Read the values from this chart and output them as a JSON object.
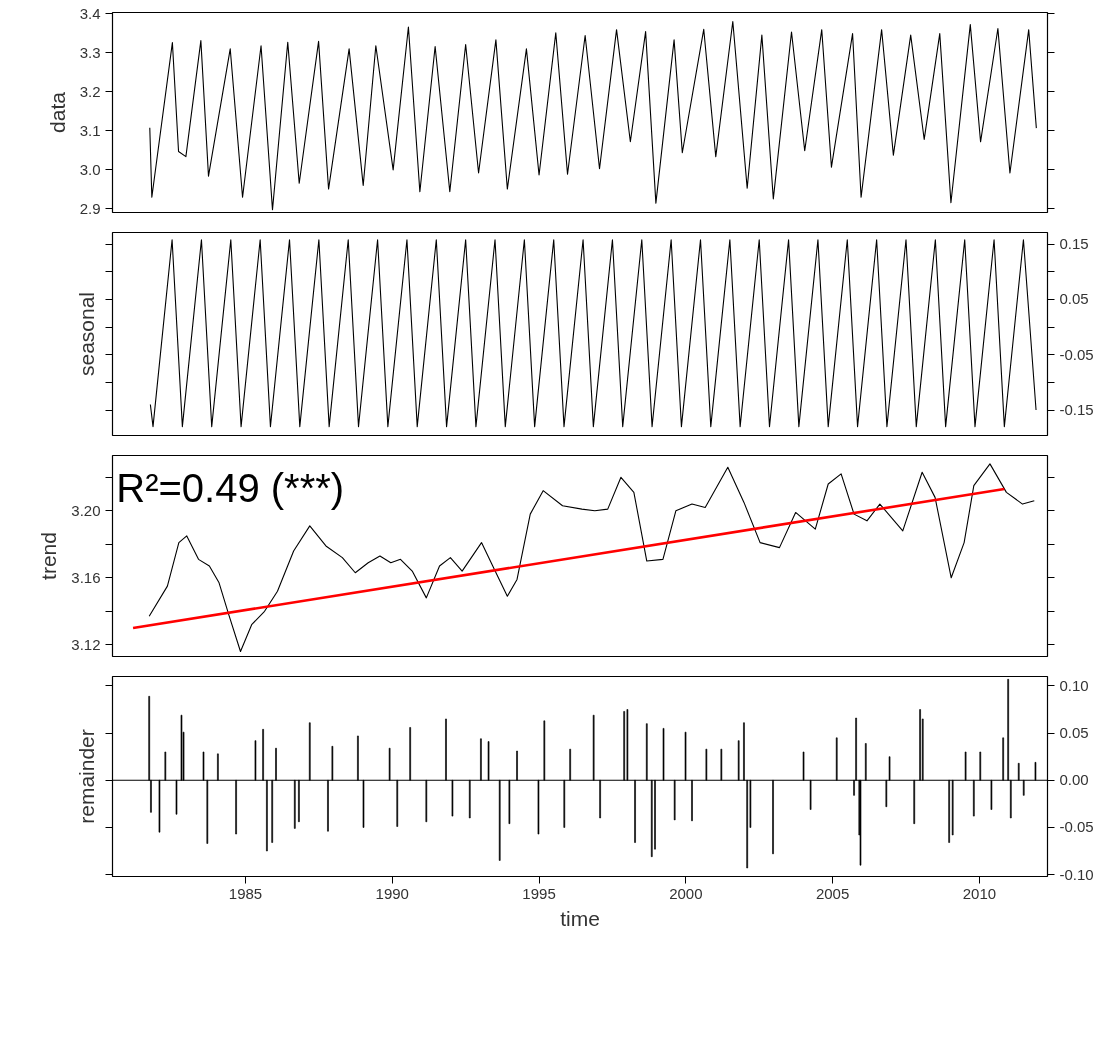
{
  "chart_data": [
    {
      "type": "line",
      "ylabel": "data",
      "xlim": [
        1980.47,
        2012.32
      ],
      "ylim": [
        2.891,
        3.403
      ],
      "yticks": [
        3.4,
        3.3,
        3.2,
        3.1,
        {
          "value": 3.0,
          "label": "3.0"
        },
        2.9
      ],
      "tick_labels": "y",
      "series": [
        {
          "color": "#000000",
          "x": [
            1981.74,
            1981.81,
            1982.51,
            1982.72,
            1982.97,
            1983.48,
            1983.74,
            1984.48,
            1984.9,
            1985.53,
            1985.92,
            1986.44,
            1986.83,
            1987.49,
            1987.83,
            1988.53,
            1989.01,
            1989.44,
            1990.03,
            1990.55,
            1990.94,
            1991.46,
            1991.96,
            1992.5,
            1992.94,
            1993.53,
            1993.92,
            1994.57,
            1995.0,
            1995.57,
            1995.97,
            1996.57,
            1997.06,
            1997.64,
            1998.11,
            1998.63,
            1998.98,
            1999.6,
            1999.88,
            2000.61,
            2001.02,
            2001.6,
            2002.09,
            2002.59,
            2002.98,
            2003.6,
            2004.05,
            2004.63,
            2004.96,
            2005.68,
            2005.97,
            2006.67,
            2007.07,
            2007.66,
            2008.12,
            2008.65,
            2009.03,
            2009.69,
            2010.04,
            2010.63,
            2011.04,
            2011.68,
            2011.94
          ],
          "values": [
            3.108,
            2.93,
            3.326,
            3.047,
            3.034,
            3.331,
            2.984,
            3.31,
            2.93,
            3.318,
            2.898,
            3.327,
            2.966,
            3.329,
            2.951,
            3.31,
            2.96,
            3.318,
            3.0,
            3.366,
            2.944,
            3.316,
            2.944,
            3.321,
            2.992,
            3.333,
            2.951,
            3.31,
            2.987,
            3.351,
            2.989,
            3.344,
            3.003,
            3.359,
            3.072,
            3.354,
            2.915,
            3.333,
            3.044,
            3.36,
            3.034,
            3.38,
            2.953,
            3.345,
            2.926,
            3.353,
            3.049,
            3.359,
            3.007,
            3.349,
            2.93,
            3.359,
            3.038,
            3.345,
            3.078,
            3.349,
            2.916,
            3.372,
            3.072,
            3.362,
            2.992,
            3.359,
            3.107
          ]
        }
      ]
    },
    {
      "type": "line",
      "ylabel": "seasonal",
      "xlim": [
        1980.47,
        2012.32
      ],
      "ylim": [
        -0.196,
        0.171
      ],
      "yticks": [
        {
          "value": -0.15,
          "label": "-0.15"
        },
        {
          "value": -0.1,
          "label": null
        },
        {
          "value": -0.05,
          "label": "-0.05"
        },
        {
          "value": 0,
          "label": null
        },
        {
          "value": 0.05,
          "label": "0.05"
        },
        {
          "value": 0.1,
          "label": null
        },
        {
          "value": 0.15,
          "label": "0.15"
        }
      ],
      "tick_labels": "y",
      "series": [
        {
          "color": "#000000",
          "x": [
            1981.76,
            1981.85,
            1982.5,
            1982.85,
            1983.5,
            1983.85,
            1984.5,
            1984.85,
            1985.5,
            1985.85,
            1986.5,
            1986.85,
            1987.5,
            1987.85,
            1988.5,
            1988.85,
            1989.5,
            1989.85,
            1990.5,
            1990.85,
            1991.5,
            1991.85,
            1992.5,
            1992.85,
            1993.5,
            1993.85,
            1994.5,
            1994.85,
            1995.5,
            1995.85,
            1996.5,
            1996.85,
            1997.5,
            1997.85,
            1998.5,
            1998.85,
            1999.5,
            1999.85,
            2000.5,
            2000.85,
            2001.5,
            2001.85,
            2002.5,
            2002.85,
            2003.5,
            2003.85,
            2004.5,
            2004.85,
            2005.5,
            2005.85,
            2006.5,
            2006.85,
            2007.5,
            2007.85,
            2008.5,
            2008.85,
            2009.5,
            2009.85,
            2010.5,
            2010.85,
            2011.5,
            2011.93
          ],
          "values": [
            -0.14,
            -0.18,
            0.158,
            -0.18,
            0.158,
            -0.18,
            0.158,
            -0.18,
            0.158,
            -0.18,
            0.158,
            -0.18,
            0.158,
            -0.18,
            0.158,
            -0.18,
            0.158,
            -0.18,
            0.158,
            -0.18,
            0.158,
            -0.18,
            0.158,
            -0.18,
            0.158,
            -0.18,
            0.158,
            -0.18,
            0.158,
            -0.18,
            0.158,
            -0.18,
            0.158,
            -0.18,
            0.158,
            -0.18,
            0.158,
            -0.18,
            0.158,
            -0.18,
            0.158,
            -0.18,
            0.158,
            -0.18,
            0.158,
            -0.18,
            0.158,
            -0.18,
            0.158,
            -0.18,
            0.158,
            -0.18,
            0.158,
            -0.18,
            0.158,
            -0.18,
            0.158,
            -0.18,
            0.158,
            -0.18,
            0.158,
            -0.15
          ]
        }
      ]
    },
    {
      "type": "line",
      "ylabel": "trend",
      "xlim": [
        1980.47,
        2012.32
      ],
      "ylim": [
        3.113,
        3.233
      ],
      "yticks": [
        {
          "value": 3.12,
          "label": "3.12"
        },
        {
          "value": 3.14,
          "label": null
        },
        {
          "value": 3.16,
          "label": "3.16"
        },
        {
          "value": 3.18,
          "label": null
        },
        {
          "value": 3.2,
          "label": "3.20"
        },
        {
          "value": 3.22,
          "label": null
        }
      ],
      "tick_labels": "y",
      "annotations": [
        "R²=0.49 (***)"
      ],
      "series": [
        {
          "color": "#000000",
          "x": [
            1981.72,
            1982.34,
            1982.73,
            1983.0,
            1983.4,
            1983.77,
            1984.1,
            1984.43,
            1984.83,
            1985.21,
            1985.65,
            1986.09,
            1986.64,
            1987.19,
            1987.74,
            1988.3,
            1988.74,
            1989.18,
            1989.58,
            1989.95,
            1990.28,
            1990.68,
            1991.16,
            1991.61,
            1991.98,
            1992.38,
            1993.04,
            1993.48,
            1993.92,
            1994.25,
            1994.7,
            1995.14,
            1995.8,
            1996.46,
            1996.9,
            1997.34,
            1997.79,
            1998.23,
            1998.67,
            1999.22,
            1999.66,
            2000.21,
            2000.66,
            2001.43,
            2001.98,
            2002.53,
            2003.19,
            2003.74,
            2004.41,
            2004.85,
            2005.29,
            2005.73,
            2006.17,
            2006.61,
            2007.39,
            2008.05,
            2008.49,
            2009.04,
            2009.48,
            2009.81,
            2010.36,
            2010.92,
            2011.47,
            2011.87
          ],
          "values": [
            3.137,
            3.155,
            3.181,
            3.185,
            3.171,
            3.167,
            3.157,
            3.138,
            3.116,
            3.132,
            3.14,
            3.152,
            3.176,
            3.191,
            3.179,
            3.172,
            3.163,
            3.169,
            3.173,
            3.169,
            3.171,
            3.164,
            3.148,
            3.167,
            3.172,
            3.164,
            3.181,
            3.165,
            3.149,
            3.159,
            3.198,
            3.212,
            3.203,
            3.201,
            3.2,
            3.201,
            3.22,
            3.211,
            3.17,
            3.171,
            3.2,
            3.204,
            3.202,
            3.226,
            3.205,
            3.181,
            3.178,
            3.199,
            3.189,
            3.216,
            3.222,
            3.198,
            3.194,
            3.204,
            3.188,
            3.223,
            3.208,
            3.16,
            3.181,
            3.215,
            3.228,
            3.211,
            3.204,
            3.206
          ]
        },
        {
          "type": "line",
          "color": "#ff0000",
          "x": [
            1981.17,
            2010.85
          ],
          "values": [
            3.13,
            3.213
          ]
        }
      ]
    },
    {
      "type": "bar",
      "ylabel": "remainder",
      "xlabel": "time",
      "xlim": [
        1980.47,
        2012.32
      ],
      "xticks": [
        1985,
        1990,
        1995,
        2000,
        2005,
        2010
      ],
      "ylim": [
        -0.102,
        0.11
      ],
      "yticks": [
        {
          "value": -0.1,
          "label": "-0.10"
        },
        {
          "value": -0.05,
          "label": "-0.05"
        },
        {
          "value": 0,
          "label": "0.00"
        },
        {
          "value": 0.05,
          "label": "0.05"
        },
        {
          "value": 0.1,
          "label": "0.10"
        }
      ],
      "ref_lines": [
        {
          "axis": "y",
          "value": 0,
          "color": "#000000"
        }
      ],
      "series": [
        {
          "color": "#000000",
          "x": [
            1981.72,
            1981.78,
            1982.07,
            1982.27,
            1982.65,
            1982.82,
            1982.89,
            1983.57,
            1983.7,
            1984.06,
            1984.68,
            1985.34,
            1985.6,
            1985.73,
            1985.91,
            1986.04,
            1986.68,
            1986.82,
            1987.19,
            1987.81,
            1987.96,
            1988.83,
            1989.02,
            1989.91,
            1990.17,
            1990.61,
            1991.16,
            1991.83,
            1992.05,
            1992.64,
            1993.02,
            1993.28,
            1993.66,
            1993.99,
            1994.25,
            1994.98,
            1995.18,
            1995.86,
            1996.06,
            1996.86,
            1997.08,
            1997.9,
            1998.01,
            1998.27,
            1998.67,
            1998.84,
            1998.95,
            1999.24,
            1999.62,
            1999.99,
            2000.21,
            2000.7,
            2001.21,
            2001.8,
            2001.98,
            2002.09,
            2002.2,
            2002.97,
            2004.01,
            2004.25,
            2005.14,
            2005.73,
            2005.8,
            2005.91,
            2005.95,
            2006.13,
            2006.83,
            2006.94,
            2007.78,
            2007.98,
            2008.07,
            2008.97,
            2009.09,
            2009.53,
            2009.81,
            2010.03,
            2010.41,
            2010.81,
            2010.98,
            2011.07,
            2011.34,
            2011.51,
            2011.91
          ],
          "values": [
            0.089,
            -0.034,
            -0.055,
            0.03,
            -0.036,
            0.069,
            0.051,
            0.03,
            -0.067,
            0.028,
            -0.057,
            0.042,
            0.054,
            -0.075,
            -0.066,
            0.034,
            -0.051,
            -0.044,
            0.061,
            -0.054,
            0.036,
            0.047,
            -0.05,
            0.034,
            -0.049,
            0.056,
            -0.044,
            0.065,
            -0.038,
            -0.04,
            0.044,
            0.041,
            -0.085,
            -0.046,
            0.031,
            -0.057,
            0.063,
            -0.05,
            0.033,
            0.069,
            -0.04,
            0.073,
            0.075,
            -0.066,
            0.06,
            -0.081,
            -0.073,
            0.055,
            -0.042,
            0.051,
            -0.043,
            0.033,
            0.033,
            0.042,
            0.061,
            -0.093,
            -0.05,
            -0.078,
            0.03,
            -0.031,
            0.045,
            -0.016,
            0.066,
            -0.058,
            -0.09,
            0.039,
            -0.028,
            0.025,
            -0.046,
            0.075,
            0.065,
            -0.066,
            -0.058,
            0.03,
            -0.038,
            0.03,
            -0.031,
            0.045,
            0.107,
            -0.04,
            0.018,
            -0.016,
            0.019
          ]
        }
      ]
    }
  ]
}
